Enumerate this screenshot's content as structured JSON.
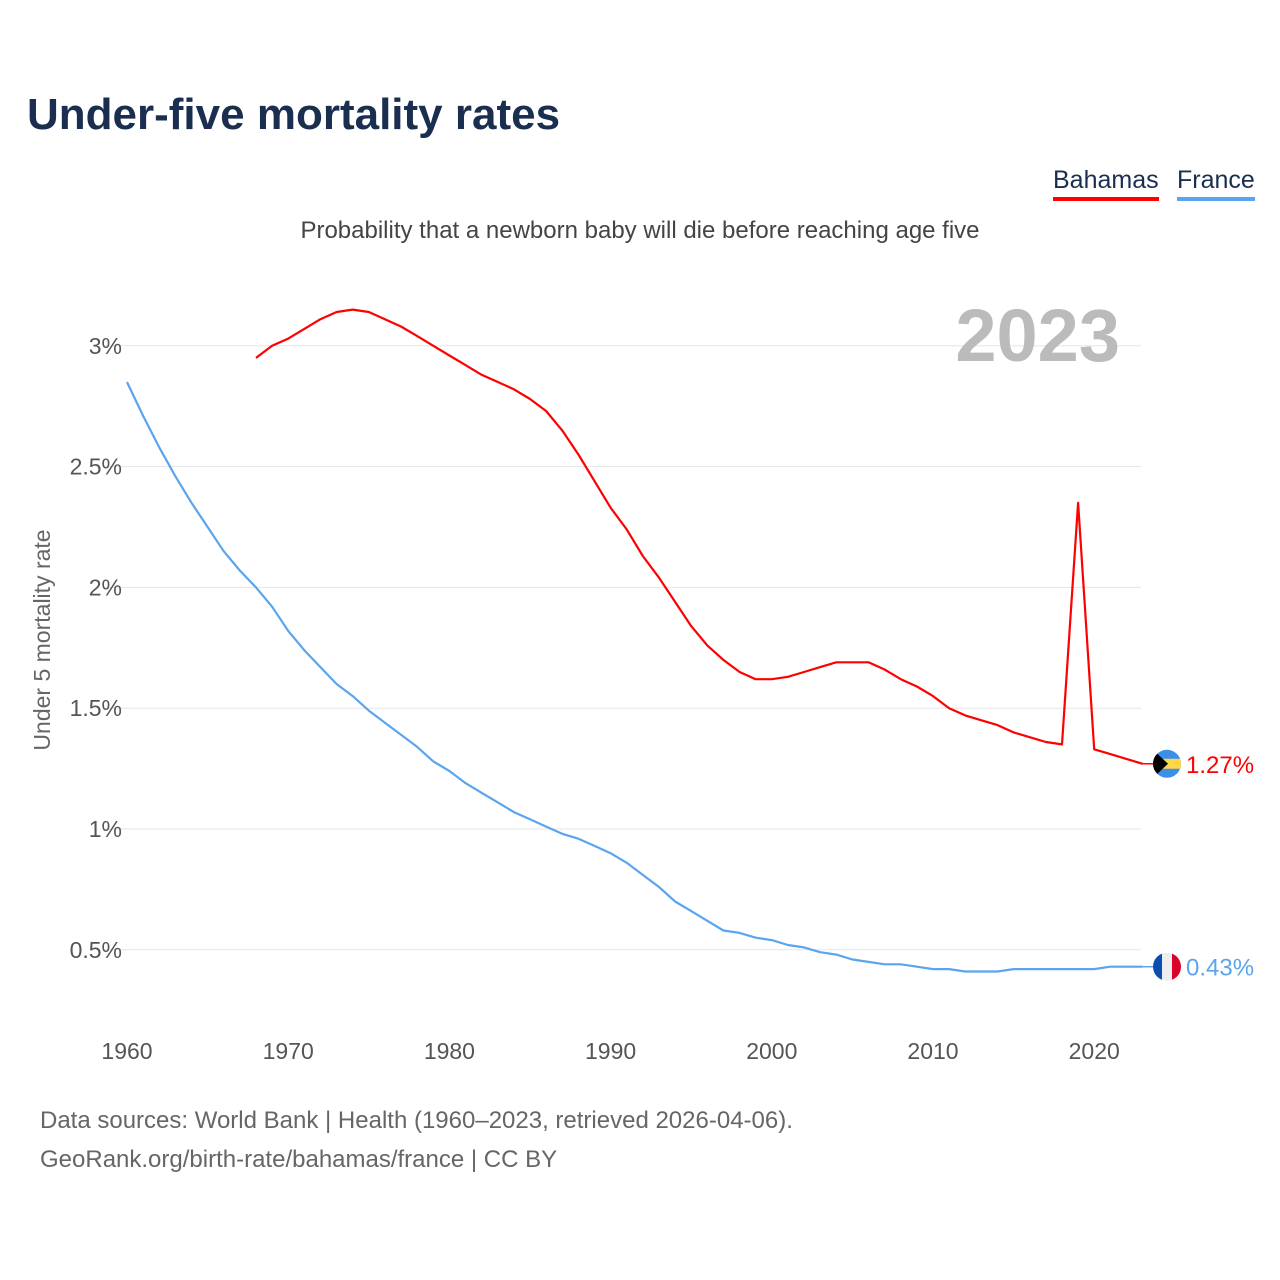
{
  "title": "Under-five mortality rates",
  "subtitle": "Probability that a newborn baby will die before reaching age five",
  "footer": {
    "line1": "Data sources: World Bank | Health (1960–2023, retrieved 2026-04-06).",
    "line2": "GeoRank.org/birth-rate/bahamas/france | CC BY"
  },
  "chart_data": {
    "type": "line",
    "title": "Under-five mortality rates",
    "xlabel": "",
    "ylabel": "Under 5 mortality rate",
    "year_label": "2023",
    "xlim": [
      1960,
      2023
    ],
    "ylim": [
      0.3,
      3.2
    ],
    "x_ticks": [
      1960,
      1970,
      1980,
      1990,
      2000,
      2010,
      2020
    ],
    "y_ticks": [
      0.5,
      1,
      1.5,
      2,
      2.5,
      3
    ],
    "y_tick_labels": [
      "0.5%",
      "1%",
      "1.5%",
      "2%",
      "2.5%",
      "3%"
    ],
    "grid": true,
    "legend_position": "top-right",
    "series": [
      {
        "name": "Bahamas",
        "color": "#ff0000",
        "flag": "bahamas-flag",
        "end_label": "1.27%",
        "start_year": 1968,
        "values": [
          2.95,
          3.0,
          3.03,
          3.07,
          3.11,
          3.14,
          3.15,
          3.14,
          3.11,
          3.08,
          3.04,
          3.0,
          2.96,
          2.92,
          2.88,
          2.85,
          2.82,
          2.78,
          2.73,
          2.65,
          2.55,
          2.44,
          2.33,
          2.24,
          2.13,
          2.04,
          1.94,
          1.84,
          1.76,
          1.7,
          1.65,
          1.62,
          1.62,
          1.63,
          1.65,
          1.67,
          1.69,
          1.69,
          1.69,
          1.66,
          1.62,
          1.59,
          1.55,
          1.5,
          1.47,
          1.45,
          1.43,
          1.4,
          1.38,
          1.36,
          1.35,
          2.35,
          1.33,
          1.31,
          1.29,
          1.27
        ]
      },
      {
        "name": "France",
        "color": "#5ba4ee",
        "flag": "france-flag",
        "end_label": "0.43%",
        "start_year": 1960,
        "values": [
          2.85,
          2.71,
          2.58,
          2.46,
          2.35,
          2.25,
          2.15,
          2.07,
          2.0,
          1.92,
          1.82,
          1.74,
          1.67,
          1.6,
          1.55,
          1.49,
          1.44,
          1.39,
          1.34,
          1.28,
          1.24,
          1.19,
          1.15,
          1.11,
          1.07,
          1.04,
          1.01,
          0.98,
          0.96,
          0.93,
          0.9,
          0.86,
          0.81,
          0.76,
          0.7,
          0.66,
          0.62,
          0.58,
          0.57,
          0.55,
          0.54,
          0.52,
          0.51,
          0.49,
          0.48,
          0.46,
          0.45,
          0.44,
          0.44,
          0.43,
          0.42,
          0.42,
          0.41,
          0.41,
          0.41,
          0.42,
          0.42,
          0.42,
          0.42,
          0.42,
          0.42,
          0.43,
          0.43,
          0.43
        ]
      }
    ]
  }
}
